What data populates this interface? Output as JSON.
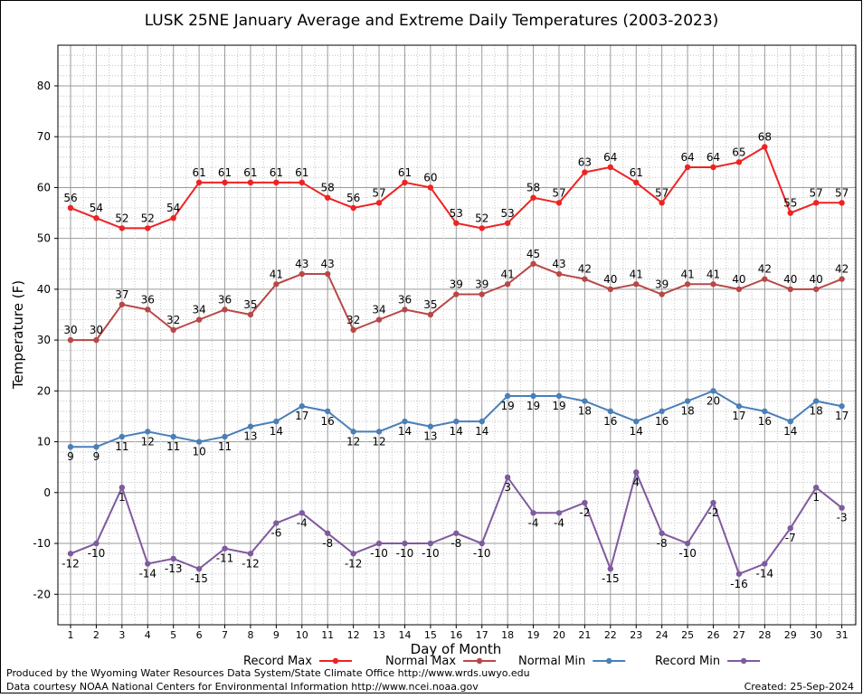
{
  "chart_data": {
    "type": "line",
    "title": "LUSK 25NE January Average and Extreme Daily Temperatures (2003-2023)",
    "xlabel": "Day of Month",
    "ylabel": "Temperature (F)",
    "x": [
      1,
      2,
      3,
      4,
      5,
      6,
      7,
      8,
      9,
      10,
      11,
      12,
      13,
      14,
      15,
      16,
      17,
      18,
      19,
      20,
      21,
      22,
      23,
      24,
      25,
      26,
      27,
      28,
      29,
      30,
      31
    ],
    "ylim": [
      -26,
      88
    ],
    "yticks": [
      -20,
      -10,
      0,
      10,
      20,
      30,
      40,
      50,
      60,
      70,
      80
    ],
    "grid": true,
    "legend_position": "bottom",
    "series": [
      {
        "name": "Record Max",
        "color": "#ee2222",
        "label_position": "above",
        "values": [
          56,
          54,
          52,
          52,
          54,
          61,
          61,
          61,
          61,
          61,
          58,
          56,
          57,
          61,
          60,
          53,
          52,
          53,
          58,
          57,
          63,
          64,
          61,
          57,
          64,
          64,
          65,
          68,
          55,
          57,
          57
        ]
      },
      {
        "name": "Normal Max",
        "color": "#b84848",
        "label_position": "above",
        "values": [
          30,
          30,
          37,
          36,
          32,
          34,
          36,
          35,
          41,
          43,
          43,
          32,
          34,
          36,
          35,
          39,
          39,
          41,
          45,
          43,
          42,
          40,
          41,
          39,
          41,
          41,
          40,
          42,
          40,
          40,
          42
        ]
      },
      {
        "name": "Normal Min",
        "color": "#4a7fb8",
        "label_position": "below",
        "values": [
          9,
          9,
          11,
          12,
          11,
          10,
          11,
          13,
          14,
          17,
          16,
          12,
          12,
          14,
          13,
          14,
          14,
          19,
          19,
          19,
          18,
          16,
          14,
          16,
          18,
          20,
          17,
          16,
          14,
          18,
          17
        ]
      },
      {
        "name": "Record Min",
        "color": "#7f5a9f",
        "label_position": "below",
        "values": [
          -12,
          -10,
          1,
          -14,
          -13,
          -15,
          -11,
          -12,
          -6,
          -4,
          -8,
          -12,
          -10,
          -10,
          -10,
          -8,
          -10,
          3,
          -4,
          -4,
          -2,
          -15,
          4,
          -8,
          -10,
          -2,
          -16,
          -14,
          -7,
          1,
          -3
        ]
      }
    ]
  },
  "footer": {
    "credit_line1": "Produced by the Wyoming Water Resources Data System/State Climate Office http://www.wrds.uwyo.edu",
    "credit_line2": "Data courtesy NOAA National Centers for Environmental Information http://www.ncei.noaa.gov",
    "created": "Created:  25-Sep-2024"
  }
}
